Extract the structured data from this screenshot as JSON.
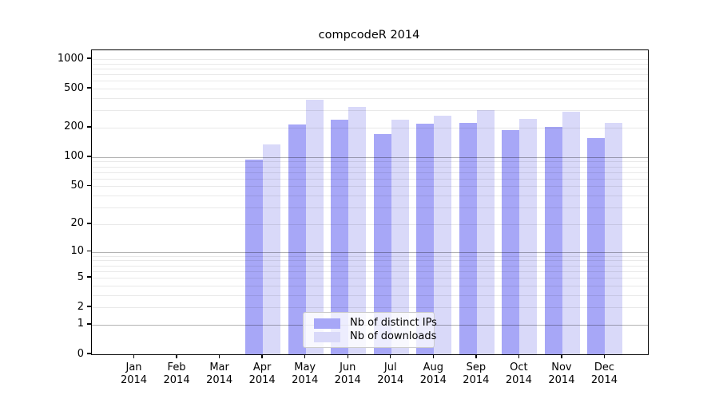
{
  "title": "compcodeR 2014",
  "chart_data": {
    "type": "bar",
    "title": "compcodeR 2014",
    "categories": [
      "Jan 2014",
      "Feb 2014",
      "Mar 2014",
      "Apr 2014",
      "May 2014",
      "Jun 2014",
      "Jul 2014",
      "Aug 2014",
      "Sep 2014",
      "Oct 2014",
      "Nov 2014",
      "Dec 2014"
    ],
    "series": [
      {
        "name": "Nb of distinct IPs",
        "color": "#a7a7f7",
        "values": [
          0,
          0,
          0,
          94,
          216,
          241,
          171,
          221,
          224,
          188,
          204,
          158
        ]
      },
      {
        "name": "Nb of downloads",
        "color": "#d9d9f9",
        "values": [
          0,
          0,
          0,
          134,
          385,
          327,
          240,
          265,
          304,
          247,
          291,
          225
        ]
      }
    ],
    "xlabel": "",
    "ylabel": "",
    "y_scale": "log1p",
    "y_ticks": [
      0,
      1,
      2,
      5,
      10,
      20,
      50,
      100,
      200,
      500,
      1000
    ],
    "y_major_gridlines": [
      1,
      10,
      100
    ],
    "y_minor_gridlines": [
      2,
      3,
      4,
      5,
      6,
      7,
      8,
      9,
      20,
      30,
      40,
      50,
      60,
      70,
      80,
      90,
      200,
      300,
      400,
      500,
      600,
      700,
      800,
      900,
      1000
    ],
    "ylim": [
      0,
      1235
    ],
    "grid": "on",
    "legend_position": "inside-bottom-center",
    "colors": {
      "bar_dark": "#a7a7f7",
      "bar_light": "#d9d9f9",
      "spine": "#000000",
      "grid_major": "#b3b3b3",
      "grid_minor": "#e9e9e9",
      "legend_border": "#cccccc"
    }
  }
}
